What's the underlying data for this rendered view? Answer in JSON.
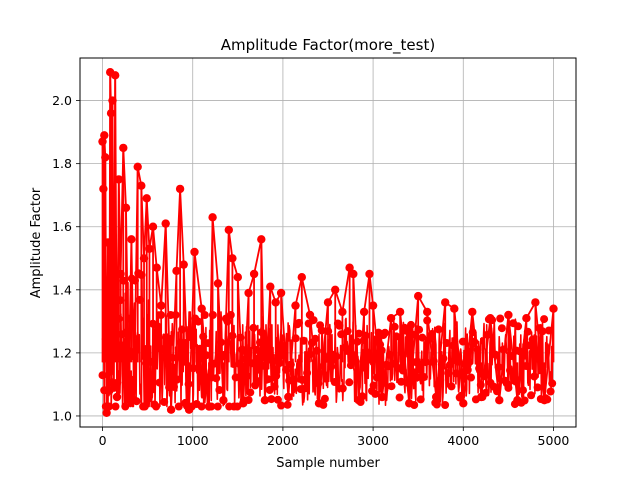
{
  "chart_data": {
    "type": "line",
    "title": "Amplitude Factor(more_test)",
    "xlabel": "Sample number",
    "ylabel": "Amplitude Factor",
    "xlim": [
      -250,
      5250
    ],
    "ylim": [
      0.965,
      2.135
    ],
    "xticks": [
      0,
      1000,
      2000,
      3000,
      4000,
      5000
    ],
    "xtick_labels": [
      "0",
      "1000",
      "2000",
      "3000",
      "4000",
      "5000"
    ],
    "yticks": [
      1.0,
      1.2,
      1.4,
      1.6,
      1.8,
      2.0
    ],
    "ytick_labels": [
      "1.0",
      "1.2",
      "1.4",
      "1.6",
      "1.8",
      "2.0"
    ],
    "grid": true,
    "legend": "none",
    "series": [
      {
        "color": "#ff0000",
        "marker": "circle",
        "x": [
          0,
          10,
          20,
          30,
          45,
          60,
          75,
          85,
          95,
          110,
          125,
          140,
          160,
          180,
          200,
          230,
          260,
          290,
          320,
          350,
          390,
          430,
          460,
          490,
          520,
          560,
          600,
          650,
          700,
          760,
          820,
          860,
          900,
          960,
          1020,
          1100,
          1180,
          1220,
          1280,
          1340,
          1400,
          1440,
          1500,
          1560,
          1620,
          1680,
          1760,
          1800,
          1860,
          1920,
          1980,
          2060,
          2140,
          2210,
          2300,
          2400,
          2500,
          2580,
          2660,
          2740,
          2780,
          2840,
          2900,
          2960,
          3000,
          3100,
          3200,
          3300,
          3400,
          3500,
          3600,
          3700,
          3800,
          3900,
          4000,
          4100,
          4200,
          4300,
          4400,
          4500,
          4600,
          4700,
          4800,
          4900,
          5000
        ],
        "y": [
          1.87,
          1.72,
          1.89,
          1.82,
          1.01,
          1.55,
          1.08,
          2.09,
          1.96,
          2.0,
          1.1,
          2.08,
          1.06,
          1.75,
          1.45,
          1.85,
          1.66,
          1.09,
          1.56,
          1.05,
          1.79,
          1.73,
          1.5,
          1.69,
          1.53,
          1.6,
          1.47,
          1.35,
          1.61,
          1.02,
          1.46,
          1.72,
          1.48,
          1.02,
          1.52,
          1.34,
          1.03,
          1.63,
          1.42,
          1.05,
          1.59,
          1.5,
          1.44,
          1.04,
          1.39,
          1.45,
          1.56,
          1.05,
          1.41,
          1.36,
          1.39,
          1.06,
          1.35,
          1.44,
          1.32,
          1.04,
          1.36,
          1.4,
          1.33,
          1.47,
          1.45,
          1.05,
          1.33,
          1.45,
          1.35,
          1.06,
          1.31,
          1.33,
          1.04,
          1.38,
          1.33,
          1.06,
          1.36,
          1.34,
          1.04,
          1.33,
          1.06,
          1.31,
          1.05,
          1.32,
          1.05,
          1.31,
          1.36,
          1.05,
          1.34
        ]
      }
    ]
  }
}
